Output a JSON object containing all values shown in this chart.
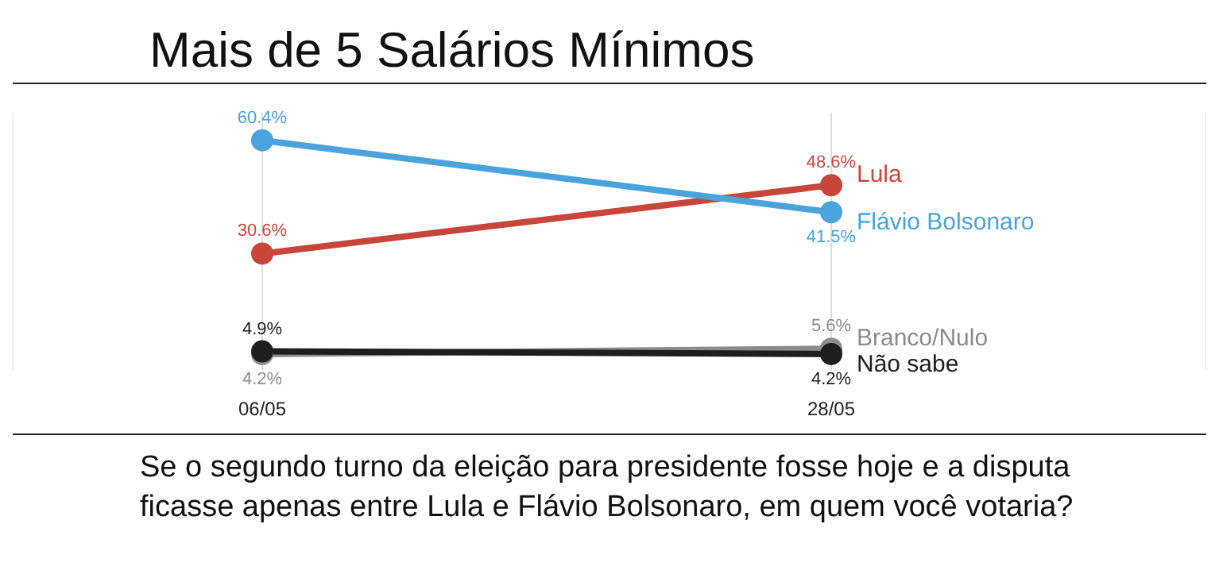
{
  "chart_data": {
    "type": "line",
    "title": "Mais de 5 Salários Mínimos",
    "categories": [
      "06/05",
      "28/05"
    ],
    "series": [
      {
        "name": "Lula",
        "color": "#c8453b",
        "values": [
          30.6,
          48.6
        ],
        "value_labels": [
          "30.6%",
          "48.6%"
        ]
      },
      {
        "name": "Flávio Bolsonaro",
        "color": "#4ba3de",
        "values": [
          60.4,
          41.5
        ],
        "value_labels": [
          "60.4%",
          "41.5%"
        ]
      },
      {
        "name": "Branco/Nulo",
        "color": "#8c8c8c",
        "values": [
          4.2,
          5.6
        ],
        "value_labels": [
          "4.2%",
          "5.6%"
        ]
      },
      {
        "name": "Não sabe",
        "color": "#1e1e1e",
        "values": [
          4.9,
          4.2
        ],
        "value_labels": [
          "4.9%",
          "4.2%"
        ]
      }
    ],
    "grid": "x",
    "legend": false,
    "marker": "circle",
    "line_style": "solid",
    "tick_labels": "x",
    "annotations": [
      "Se o segundo turno da eleição para presidente fosse hoje e a disputa ficasse apenas entre Lula e Flávio Bolsonaro, em quem você votaria?"
    ]
  }
}
